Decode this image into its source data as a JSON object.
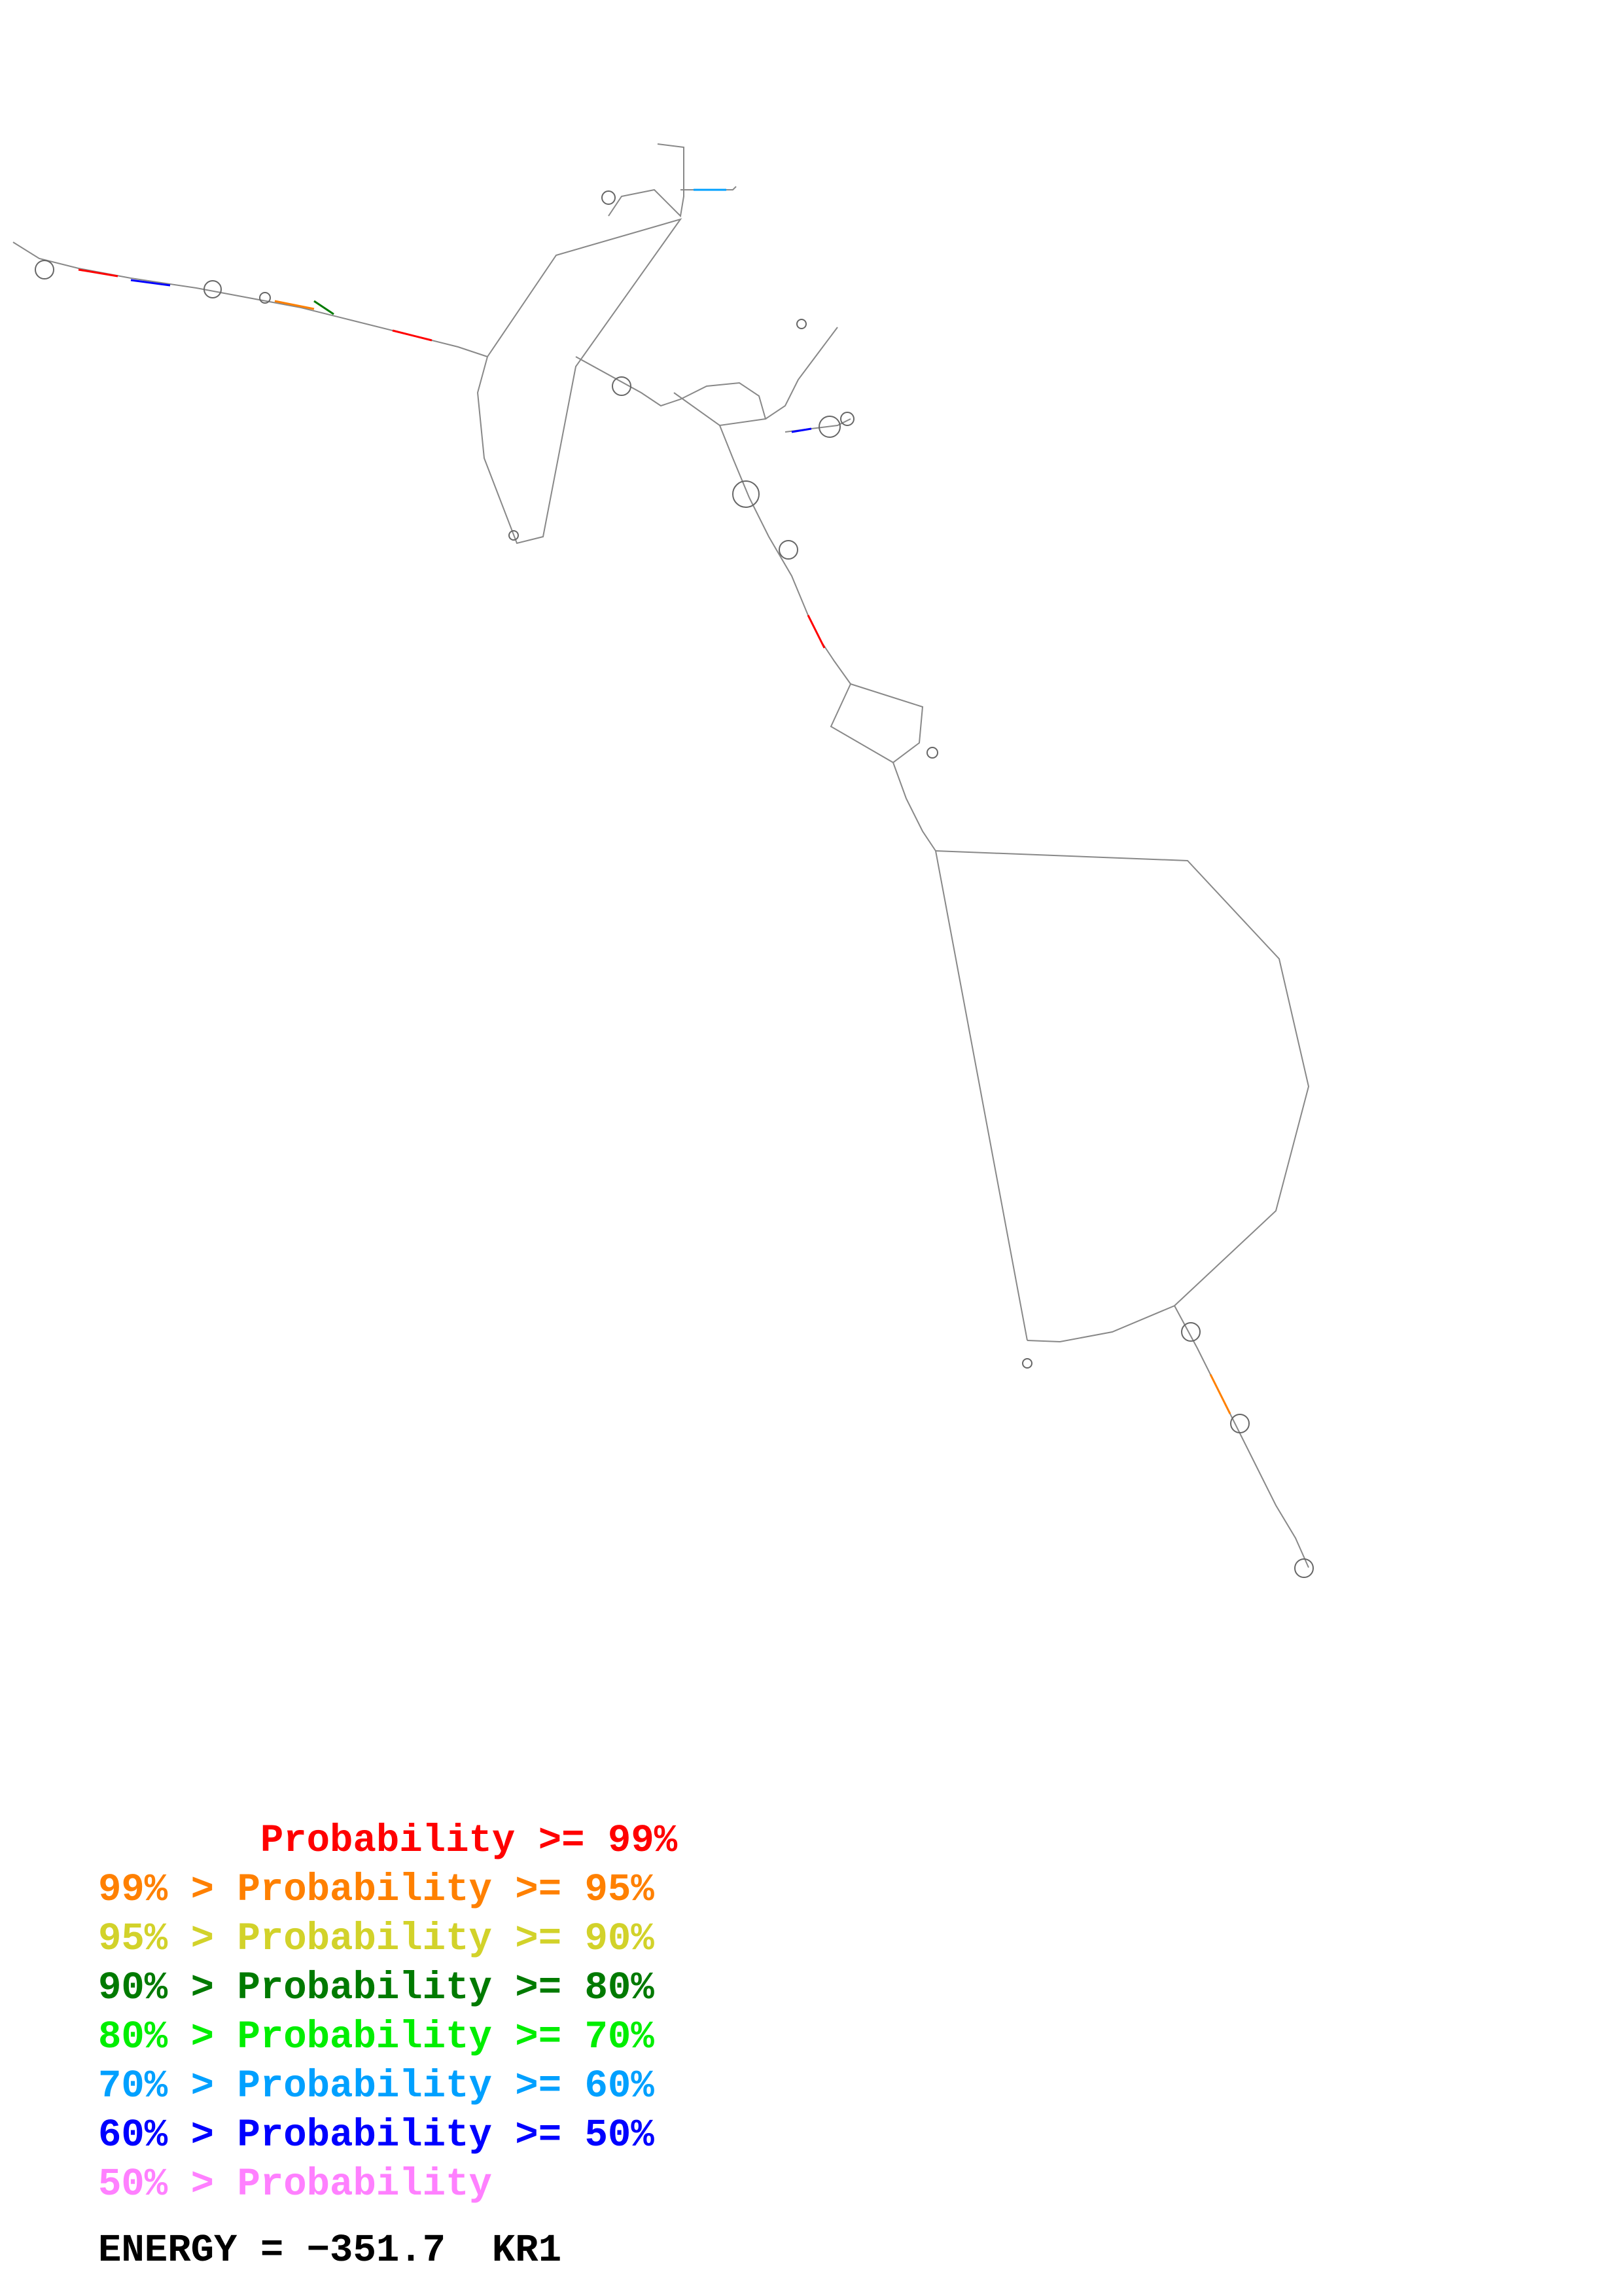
{
  "legend": {
    "rows": [
      {
        "prefix": "       ",
        "text": "Probability >= 99%",
        "color": "#ff0000"
      },
      {
        "prefix": "99% > ",
        "text": "Probability >= 95%",
        "color": "#ff8000"
      },
      {
        "prefix": "95% > ",
        "text": "Probability >= 90%",
        "color": "#d2d22a"
      },
      {
        "prefix": "90% > ",
        "text": "Probability >= 80%",
        "color": "#007a00"
      },
      {
        "prefix": "80% > ",
        "text": "Probability >= 70%",
        "color": "#00ee00"
      },
      {
        "prefix": "70% > ",
        "text": "Probability >= 60%",
        "color": "#00a0ff"
      },
      {
        "prefix": "60% > ",
        "text": "Probability >= 50%",
        "color": "#0000ff"
      },
      {
        "prefix": "50% > ",
        "text": "Probability",
        "color": "#ff80ff"
      }
    ]
  },
  "energy": {
    "label": "ENERGY = ",
    "value": "−351.7",
    "name": "KR1"
  },
  "colors": {
    "backbone": "#7f7f7f",
    "loop": "#555555"
  }
}
